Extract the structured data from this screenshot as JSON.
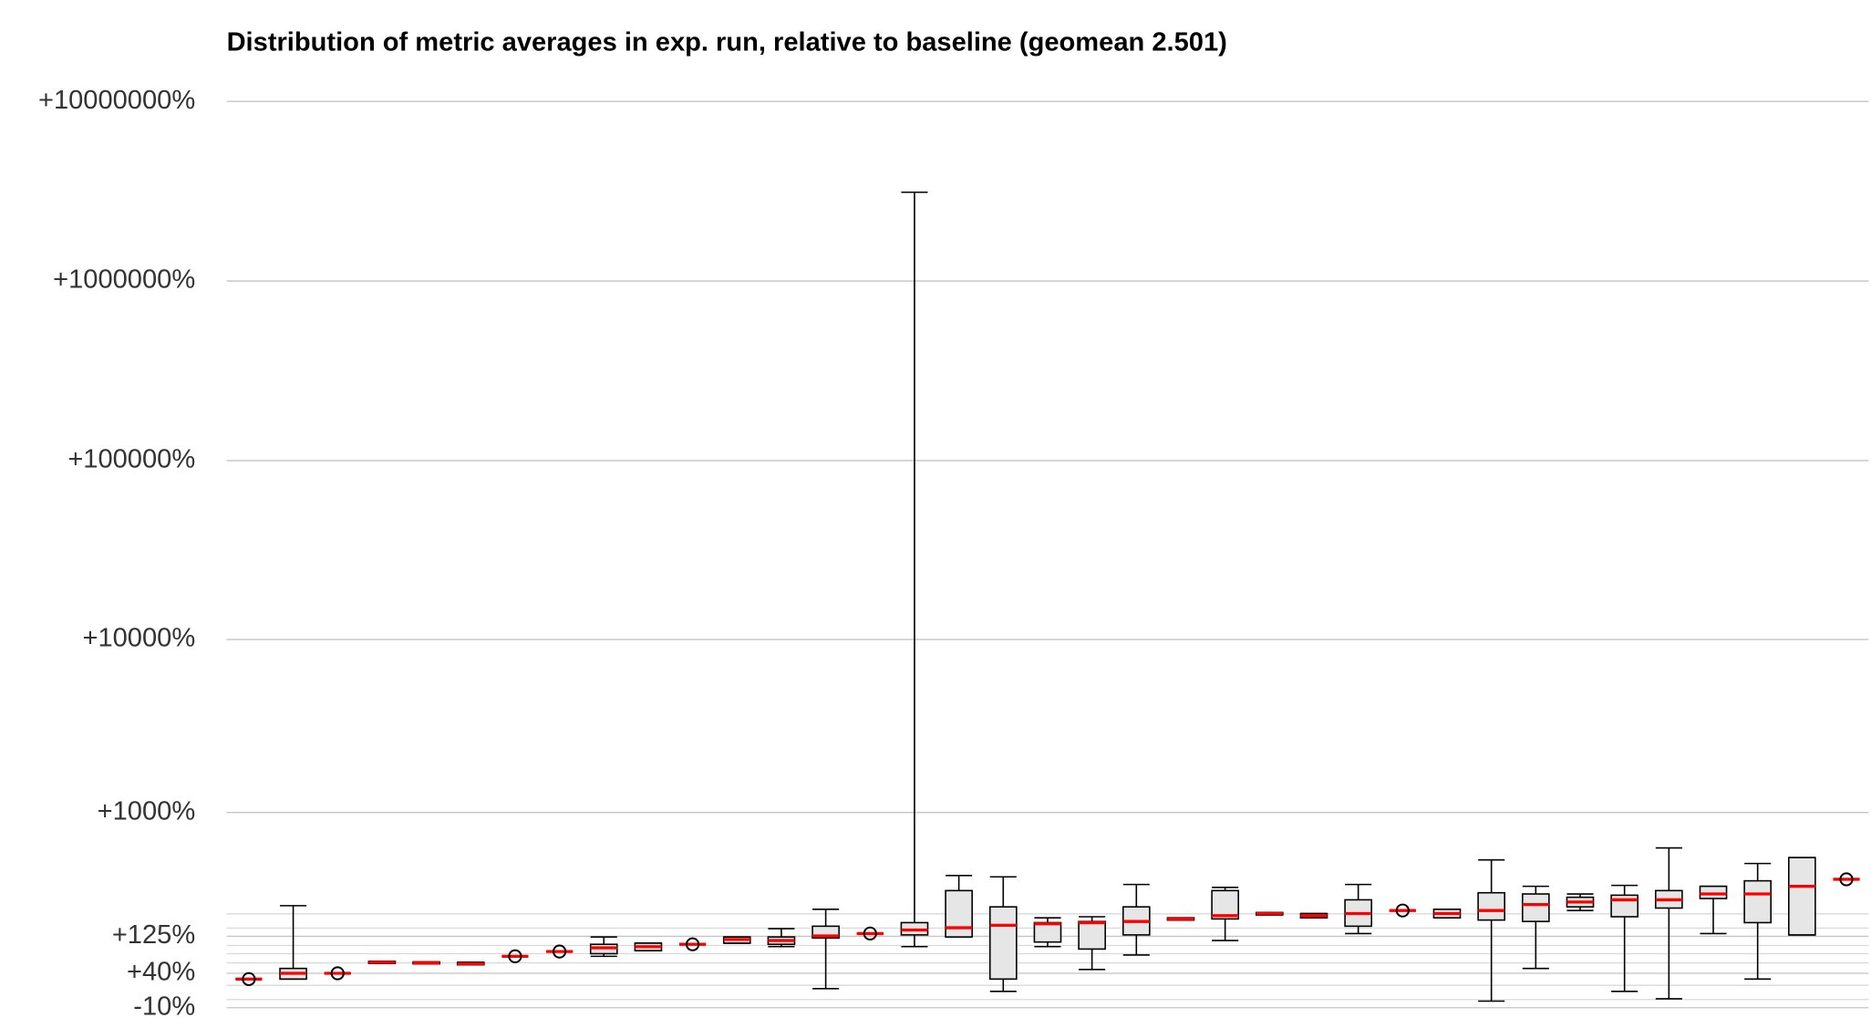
{
  "chart_data": {
    "type": "box",
    "title": "Distribution of metric averages in exp. run, relative to baseline (geomean 2.501)",
    "log_scale": true,
    "grid": true,
    "box_color": "#e6e6e6",
    "median_color": "#ff0000",
    "ylim": [
      0.84,
      145000
    ],
    "yticks": [
      {
        "value": 100001,
        "label": "+10000000%"
      },
      {
        "value": 10001,
        "label": "+1000000%"
      },
      {
        "value": 1001,
        "label": "+100000%"
      },
      {
        "value": 101,
        "label": "+10000%"
      },
      {
        "value": 11,
        "label": "+1000%"
      },
      {
        "value": 2.25,
        "label": "+125%"
      },
      {
        "value": 1.4,
        "label": "+40%"
      },
      {
        "value": 0.9,
        "label": "-10%"
      }
    ],
    "minor_yticks": [
      1,
      1.2,
      1.6,
      1.8,
      2,
      2.5,
      3
    ],
    "boxes": [
      {
        "min": 1.3,
        "q1": 1.3,
        "median": 1.3,
        "q3": 1.3,
        "max": 1.3
      },
      {
        "min": 1.3,
        "q1": 1.3,
        "median": 1.4,
        "q3": 1.49,
        "max": 3.33
      },
      {
        "min": 1.4,
        "q1": 1.4,
        "median": 1.4,
        "q3": 1.4,
        "max": 1.4
      },
      {
        "min": 1.59,
        "q1": 1.59,
        "median": 1.61,
        "q3": 1.63,
        "max": 1.63
      },
      {
        "min": 1.58,
        "q1": 1.58,
        "median": 1.6,
        "q3": 1.62,
        "max": 1.62
      },
      {
        "min": 1.56,
        "q1": 1.56,
        "median": 1.58,
        "q3": 1.61,
        "max": 1.61
      },
      {
        "min": 1.74,
        "q1": 1.74,
        "median": 1.74,
        "q3": 1.74,
        "max": 1.74
      },
      {
        "min": 1.85,
        "q1": 1.85,
        "median": 1.85,
        "q3": 1.85,
        "max": 1.85
      },
      {
        "min": 1.74,
        "q1": 1.8,
        "median": 1.94,
        "q3": 2.03,
        "max": 2.23
      },
      {
        "min": 1.87,
        "q1": 1.87,
        "median": 1.97,
        "q3": 2.06,
        "max": 2.06
      },
      {
        "min": 2.03,
        "q1": 2.03,
        "median": 2.03,
        "q3": 2.03,
        "max": 2.03
      },
      {
        "min": 2.06,
        "q1": 2.06,
        "median": 2.16,
        "q3": 2.23,
        "max": 2.23
      },
      {
        "min": 1.97,
        "q1": 2.03,
        "median": 2.13,
        "q3": 2.23,
        "max": 2.48
      },
      {
        "min": 1.15,
        "q1": 2.2,
        "median": 2.26,
        "q3": 2.56,
        "max": 3.18
      },
      {
        "min": 2.33,
        "q1": 2.33,
        "median": 2.33,
        "q3": 2.33,
        "max": 2.33
      },
      {
        "min": 1.97,
        "q1": 2.29,
        "median": 2.44,
        "q3": 2.68,
        "max": 31200
      },
      {
        "min": 2.23,
        "q1": 2.23,
        "median": 2.51,
        "q3": 4.04,
        "max": 4.9
      },
      {
        "min": 1.11,
        "q1": 1.3,
        "median": 2.59,
        "q3": 3.28,
        "max": 4.82
      },
      {
        "min": 1.97,
        "q1": 2.09,
        "median": 2.64,
        "q3": 2.68,
        "max": 2.85
      },
      {
        "min": 1.47,
        "q1": 1.91,
        "median": 2.68,
        "q3": 2.72,
        "max": 2.89
      },
      {
        "min": 1.77,
        "q1": 2.29,
        "median": 2.72,
        "q3": 3.28,
        "max": 4.37
      },
      {
        "min": 2.77,
        "q1": 2.77,
        "median": 2.81,
        "q3": 2.85,
        "max": 2.85
      },
      {
        "min": 2.13,
        "q1": 2.81,
        "median": 2.93,
        "q3": 4.04,
        "max": 4.21
      },
      {
        "min": 2.96,
        "q1": 2.96,
        "median": 3.01,
        "q3": 3.05,
        "max": 3.05
      },
      {
        "min": 2.85,
        "q1": 2.85,
        "median": 2.93,
        "q3": 3.01,
        "max": 3.01
      },
      {
        "min": 2.33,
        "q1": 2.56,
        "median": 3.01,
        "q3": 3.59,
        "max": 4.37
      },
      {
        "min": 3.13,
        "q1": 3.13,
        "median": 3.13,
        "q3": 3.13,
        "max": 3.13
      },
      {
        "min": 2.85,
        "q1": 2.85,
        "median": 3.01,
        "q3": 3.18,
        "max": 3.18
      },
      {
        "min": 0.98,
        "q1": 2.77,
        "median": 3.13,
        "q3": 3.93,
        "max": 5.99
      },
      {
        "min": 1.49,
        "q1": 2.72,
        "median": 3.38,
        "q3": 3.87,
        "max": 4.27
      },
      {
        "min": 3.13,
        "q1": 3.28,
        "median": 3.49,
        "q3": 3.71,
        "max": 3.87
      },
      {
        "min": 1.11,
        "q1": 2.89,
        "median": 3.59,
        "q3": 3.81,
        "max": 4.32
      },
      {
        "min": 1.01,
        "q1": 3.23,
        "median": 3.59,
        "q3": 4.04,
        "max": 6.98
      },
      {
        "min": 2.33,
        "q1": 3.65,
        "median": 3.87,
        "q3": 4.27,
        "max": 4.27
      },
      {
        "min": 1.3,
        "q1": 2.68,
        "median": 3.87,
        "q3": 4.58,
        "max": 5.72
      },
      {
        "min": 2.29,
        "q1": 2.29,
        "median": 4.27,
        "q3": 6.17,
        "max": 6.17
      },
      {
        "min": 4.67,
        "q1": 4.67,
        "median": 4.67,
        "q3": 4.67,
        "max": 4.67
      }
    ]
  }
}
